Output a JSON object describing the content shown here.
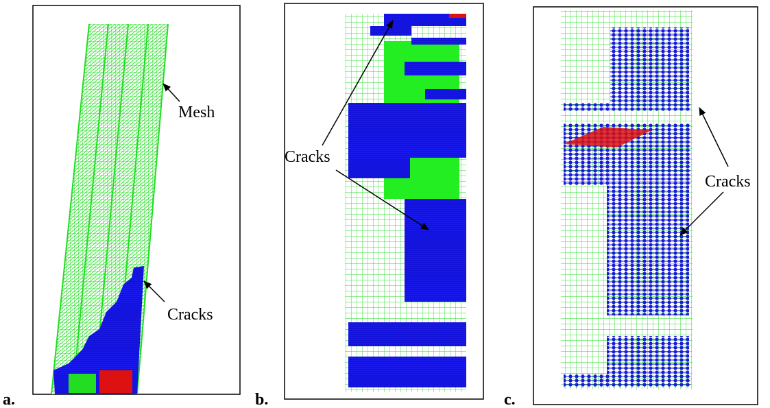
{
  "panels": [
    {
      "label": "a.",
      "annotations": [
        "Mesh",
        "Cracks"
      ]
    },
    {
      "label": "b.",
      "annotations": [
        "Cracks"
      ]
    },
    {
      "label": "c.",
      "annotations": [
        "Cracks"
      ]
    }
  ]
}
